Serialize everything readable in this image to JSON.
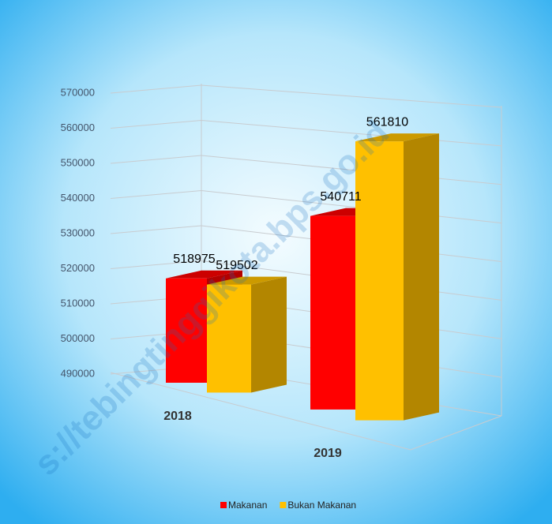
{
  "chart_data": {
    "type": "bar3d",
    "categories": [
      "2018",
      "2019"
    ],
    "series": [
      {
        "name": "Makanan",
        "color": "#ff0000",
        "values": [
          518975,
          540711
        ]
      },
      {
        "name": "Bukan Makanan",
        "color": "#ffc000",
        "values": [
          519502,
          561810
        ]
      }
    ],
    "ylim": [
      490000,
      570000
    ],
    "yticks": [
      490000,
      500000,
      510000,
      520000,
      530000,
      540000,
      550000,
      560000,
      570000
    ],
    "grid": true,
    "legend": "bottom",
    "watermark": "s://tebingtinggikota.bps.go.id"
  }
}
